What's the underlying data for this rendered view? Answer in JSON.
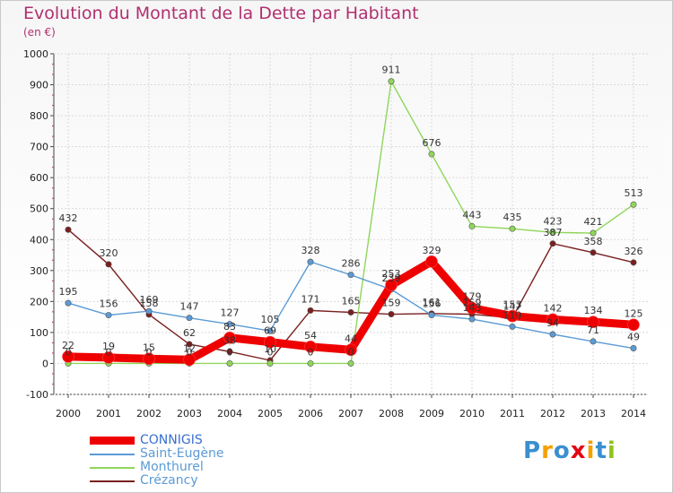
{
  "chart_data": {
    "type": "line",
    "title": "Evolution du Montant de la Dette par Habitant",
    "subtitle": "(en €)",
    "x": [
      "2000",
      "2001",
      "2002",
      "2003",
      "2004",
      "2005",
      "2006",
      "2007",
      "2008",
      "2009",
      "2010",
      "2011",
      "2012",
      "2013",
      "2014"
    ],
    "ylim": [
      -100,
      1000
    ],
    "yticks": [
      "-100",
      "0",
      "100",
      "200",
      "300",
      "400",
      "500",
      "600",
      "700",
      "800",
      "900",
      "1000"
    ],
    "grid": true,
    "legend_position": "bottom-left",
    "series": [
      {
        "name": "CONNIGIS",
        "color": "#ee0000",
        "values": [
          22,
          19,
          15,
          12,
          83,
          69,
          54,
          44,
          253,
          329,
          179,
          153,
          142,
          134,
          125
        ]
      },
      {
        "name": "Saint-Eugène",
        "color": "#5b9bd5",
        "values": [
          195,
          156,
          169,
          147,
          127,
          105,
          328,
          286,
          239,
          156,
          143,
          119,
          94,
          71,
          49
        ]
      },
      {
        "name": "Monthurel",
        "color": "#8fd65a",
        "values": [
          0,
          0,
          0,
          0,
          0,
          0,
          0,
          0,
          911,
          676,
          443,
          435,
          423,
          421,
          513
        ]
      },
      {
        "name": "Crézancy",
        "color": "#7a1f1f",
        "values": [
          432,
          320,
          158,
          62,
          38,
          10,
          171,
          165,
          159,
          161,
          159,
          147,
          387,
          358,
          326
        ]
      }
    ],
    "data_labels": {
      "CONNIGIS": [
        "22",
        "19",
        "15",
        "12",
        "83",
        "69",
        "54",
        "44",
        "253",
        "329",
        "179",
        "153",
        "142",
        "134",
        "125"
      ],
      "Saint-Eugène": [
        "195",
        "156",
        "169",
        "147",
        "127",
        "105",
        "328",
        "286",
        "239",
        "156",
        "143",
        "119",
        "94",
        "71",
        "49"
      ],
      "Monthurel": [
        "0",
        "0",
        "0",
        "0",
        "0",
        "0",
        "0",
        "0",
        "911",
        "676",
        "443",
        "435",
        "423",
        "421",
        "513"
      ],
      "Crézancy": [
        "432",
        "320",
        "158",
        "62",
        "38",
        "10",
        "171",
        "165",
        "159",
        "161",
        "159",
        "147",
        "387",
        "358",
        "326"
      ]
    }
  },
  "logo": {
    "letters": [
      "P",
      "r",
      "o",
      "x",
      "i",
      "t",
      "i"
    ],
    "colors": [
      "#3a8fd0",
      "#f5a000",
      "#3a8fd0",
      "#e30613",
      "#f5a000",
      "#3a8fd0",
      "#8fc31f"
    ]
  }
}
